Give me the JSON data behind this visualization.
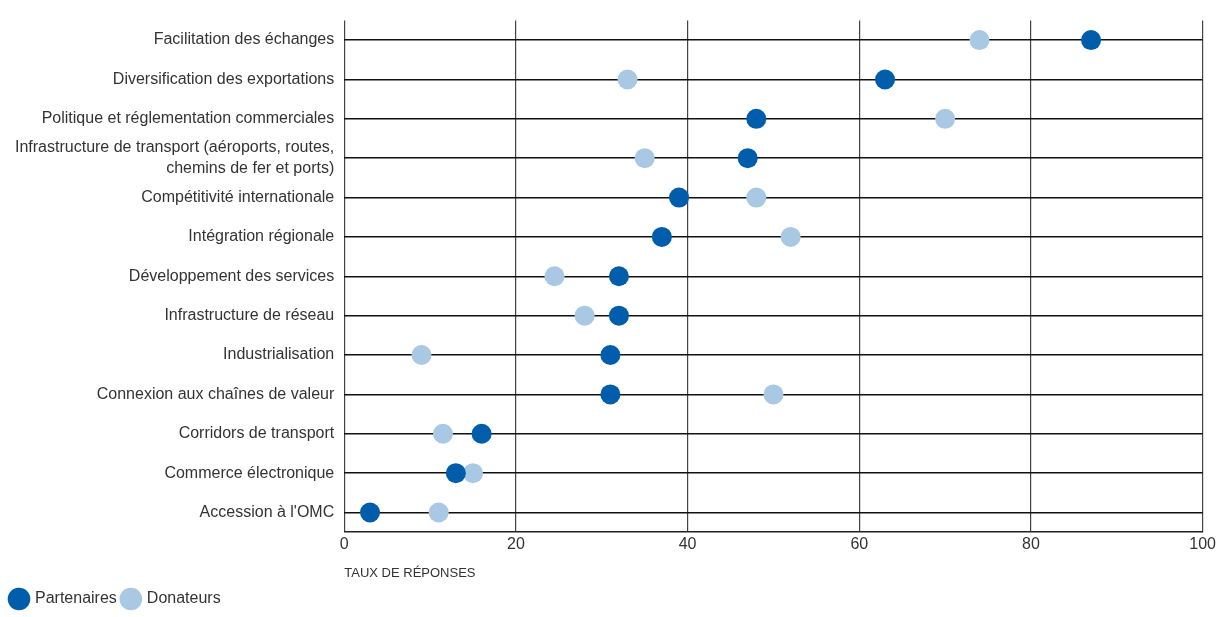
{
  "chart_data": {
    "type": "scatter",
    "orientation": "horizontal",
    "categories": [
      "Facilitation des échanges",
      "Diversification des exportations",
      "Politique et réglementation commerciales",
      "Infrastructure de transport (aéroports, routes, chemins de fer et ports)",
      "Compétitivité internationale",
      "Intégration régionale",
      "Développement des services",
      "Infrastructure de réseau",
      "Industrialisation",
      "Connexion aux chaînes de valeur",
      "Corridors de transport",
      "Commerce électronique",
      "Accession à l'OMC"
    ],
    "series": [
      {
        "name": "Partenaires",
        "color": "#005dab",
        "values": [
          87,
          63,
          48,
          47,
          39,
          37,
          32,
          32,
          31,
          31,
          16,
          13,
          3
        ]
      },
      {
        "name": "Donateurs",
        "color": "#a8c8e3",
        "values": [
          74,
          33,
          70,
          35,
          48,
          52,
          24.5,
          28,
          9,
          50,
          11.5,
          15,
          11
        ]
      }
    ],
    "xlabel": "TAUX DE RÉPONSES",
    "xlim": [
      0,
      100
    ],
    "xticks": [
      0,
      20,
      40,
      60,
      80,
      100
    ],
    "grid": true,
    "legend": "bottom left",
    "marker": "circle"
  }
}
